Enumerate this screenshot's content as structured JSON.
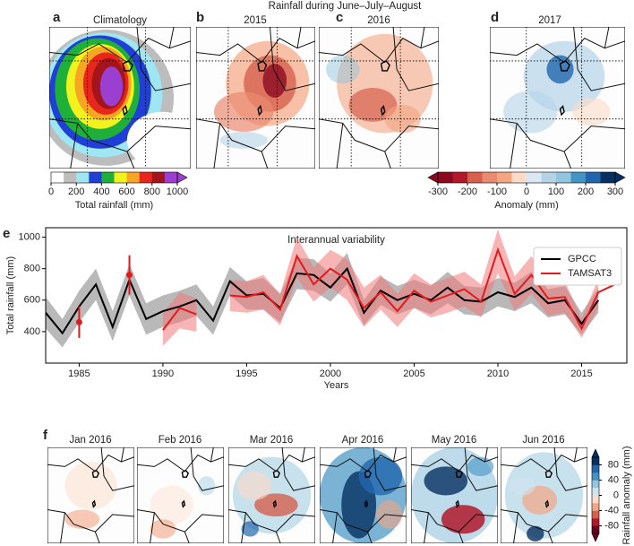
{
  "suptitle": "Rainfall during June–July–August",
  "top_panels": [
    {
      "letter": "a",
      "title": "Climatology"
    },
    {
      "letter": "b",
      "title": "2015"
    },
    {
      "letter": "c",
      "title": "2016"
    },
    {
      "letter": "d",
      "title": "2017"
    }
  ],
  "colorbar_total": {
    "label": "Total rainfall (mm)",
    "lim": [
      0,
      1000
    ],
    "ticks": [
      0,
      200,
      400,
      600,
      800,
      1000
    ],
    "extend": "max",
    "colors": [
      "#ffffff",
      "#bdbdbd",
      "#9ee6f2",
      "#1f3fd6",
      "#1fb03a",
      "#f2f21f",
      "#f5a623",
      "#e8261c",
      "#a3141b",
      "#9b3fd1"
    ]
  },
  "colorbar_anomaly": {
    "label": "Anomaly (mm)",
    "lim": [
      -300,
      300
    ],
    "ticks": [
      -300,
      -200,
      -100,
      0,
      100,
      200,
      300
    ],
    "extend": "both",
    "colors": [
      "#8b0a1f",
      "#b2182b",
      "#d6604d",
      "#ea8a70",
      "#f4a582",
      "#fddbc7",
      "#d9e8f3",
      "#b5d3e8",
      "#92c5de",
      "#4393c3",
      "#2166ac",
      "#053061"
    ]
  },
  "chart_data": {
    "type": "line",
    "letter": "e",
    "title": "Interannual variability",
    "xlabel": "Years",
    "ylabel": "Total rainfall (mm)",
    "x": [
      1983,
      1984,
      1985,
      1986,
      1987,
      1988,
      1989,
      1990,
      1991,
      1992,
      1993,
      1994,
      1995,
      1996,
      1997,
      1998,
      1999,
      2000,
      2001,
      2002,
      2003,
      2004,
      2005,
      2006,
      2007,
      2008,
      2009,
      2010,
      2011,
      2012,
      2013,
      2014,
      2015,
      2016,
      2017
    ],
    "series": [
      {
        "name": "GPCC",
        "color": "#000000",
        "band_color": "#808080",
        "values": [
          520,
          390,
          560,
          700,
          430,
          730,
          480,
          530,
          560,
          600,
          470,
          720,
          630,
          640,
          550,
          770,
          760,
          680,
          800,
          520,
          660,
          600,
          640,
          600,
          680,
          600,
          590,
          650,
          620,
          680,
          580,
          600,
          450,
          600,
          null
        ],
        "lower": [
          420,
          300,
          460,
          600,
          340,
          630,
          380,
          430,
          460,
          500,
          380,
          630,
          540,
          540,
          460,
          670,
          660,
          590,
          700,
          440,
          570,
          510,
          550,
          510,
          580,
          510,
          500,
          560,
          530,
          580,
          490,
          510,
          380,
          520,
          null
        ],
        "upper": [
          620,
          480,
          660,
          800,
          530,
          830,
          580,
          630,
          660,
          700,
          560,
          810,
          720,
          740,
          640,
          870,
          860,
          770,
          900,
          600,
          750,
          690,
          730,
          690,
          780,
          690,
          680,
          740,
          710,
          780,
          670,
          690,
          520,
          680,
          null
        ]
      },
      {
        "name": "TAMSAT3",
        "color": "#e31a1c",
        "band_color": "#f07878",
        "values": [
          null,
          null,
          460,
          null,
          null,
          760,
          null,
          410,
          550,
          510,
          null,
          630,
          620,
          650,
          540,
          880,
          700,
          800,
          730,
          550,
          650,
          530,
          660,
          590,
          630,
          670,
          590,
          920,
          640,
          760,
          610,
          620,
          420,
          650,
          700
        ],
        "lower": [
          null,
          null,
          null,
          null,
          null,
          null,
          null,
          310,
          420,
          400,
          null,
          530,
          520,
          540,
          440,
          740,
          590,
          680,
          600,
          430,
          540,
          430,
          550,
          490,
          520,
          560,
          490,
          770,
          530,
          640,
          500,
          520,
          360,
          550,
          null
        ],
        "upper": [
          null,
          null,
          null,
          null,
          null,
          null,
          null,
          520,
          650,
          610,
          null,
          730,
          720,
          760,
          640,
          1000,
          810,
          920,
          860,
          680,
          760,
          640,
          770,
          700,
          740,
          780,
          700,
          1050,
          750,
          880,
          720,
          720,
          480,
          740,
          null
        ],
        "errors": [
          null,
          null,
          100,
          null,
          null,
          125,
          null,
          null,
          null,
          null,
          null,
          null,
          null,
          null,
          null,
          null,
          null,
          null,
          null,
          null,
          null,
          null,
          null,
          null,
          null,
          null,
          null,
          null,
          null,
          null,
          null,
          null,
          null,
          null,
          null
        ]
      }
    ],
    "xlim": [
      1983,
      2017.7
    ],
    "xticks": [
      1985,
      1990,
      1995,
      2000,
      2005,
      2010,
      2015
    ],
    "ylim": [
      200,
      1060
    ],
    "yticks": [
      400,
      600,
      800,
      1000
    ],
    "legend": "upper right"
  },
  "bottom_panels": {
    "letter": "f",
    "titles": [
      "Jan 2016",
      "Feb 2016",
      "Mar 2016",
      "Apr 2016",
      "May 2016",
      "Jun 2016"
    ]
  },
  "colorbar_monthly": {
    "label": "Rainfall anomaly (mm)",
    "lim": [
      -100,
      100
    ],
    "ticks": [
      -80,
      -40,
      0,
      40,
      80
    ],
    "extend": "both",
    "colors": [
      "#67001f",
      "#b2182b",
      "#d6604d",
      "#f4a582",
      "#fddbc7",
      "#d1e5f0",
      "#92c5de",
      "#4393c3",
      "#2166ac",
      "#053061"
    ]
  }
}
